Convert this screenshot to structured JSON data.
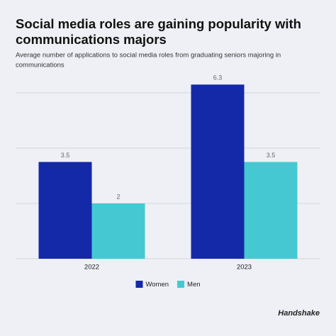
{
  "chart_data": {
    "type": "bar",
    "title_lines": [
      "Social media roles are gaining popularity with",
      "communications majors"
    ],
    "subtitle_lines": [
      "Average number of applications to social media roles from graduating seniors majoring in",
      "communications"
    ],
    "categories": [
      "2022",
      "2023"
    ],
    "series": [
      {
        "name": "Women",
        "color": "#1429a8",
        "values": [
          3.5,
          6.3
        ]
      },
      {
        "name": "Men",
        "color": "#46c8d3",
        "values": [
          2,
          3.5
        ]
      }
    ],
    "ylim": [
      0,
      6.5
    ],
    "yticks": [
      0,
      2,
      4,
      6
    ],
    "grid": true,
    "brand": "Handshake"
  }
}
